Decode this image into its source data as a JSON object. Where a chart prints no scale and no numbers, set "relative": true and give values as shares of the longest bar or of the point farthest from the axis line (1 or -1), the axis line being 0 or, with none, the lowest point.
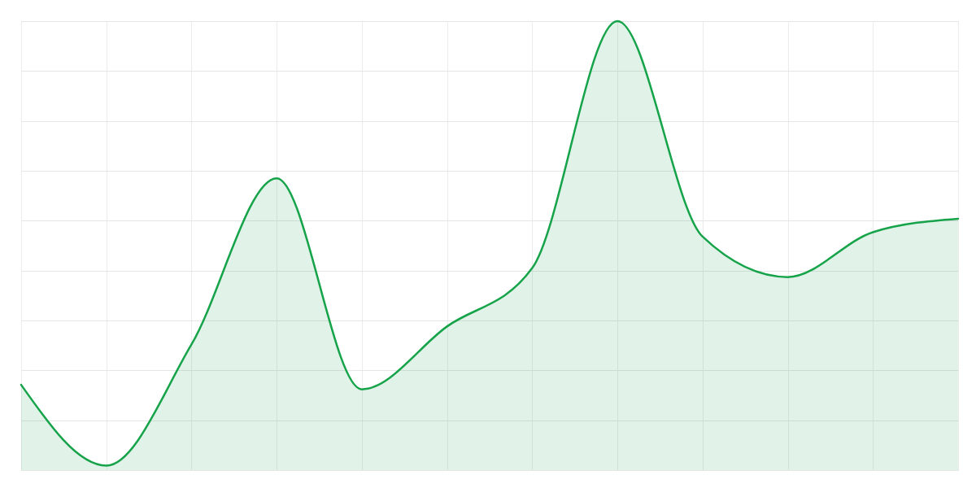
{
  "chart_data": {
    "type": "area",
    "relative": true,
    "grid": true,
    "tick_labels": false,
    "categories": [
      null,
      null,
      null,
      null,
      null,
      null,
      null,
      null,
      null,
      null,
      null,
      null
    ],
    "series": [
      {
        "color": "#16a34a",
        "values": [
          0.19,
          0.01,
          0.28,
          0.65,
          0.18,
          0.32,
          0.45,
          1,
          0.52,
          0.43,
          0.53,
          0.56
        ]
      }
    ]
  }
}
